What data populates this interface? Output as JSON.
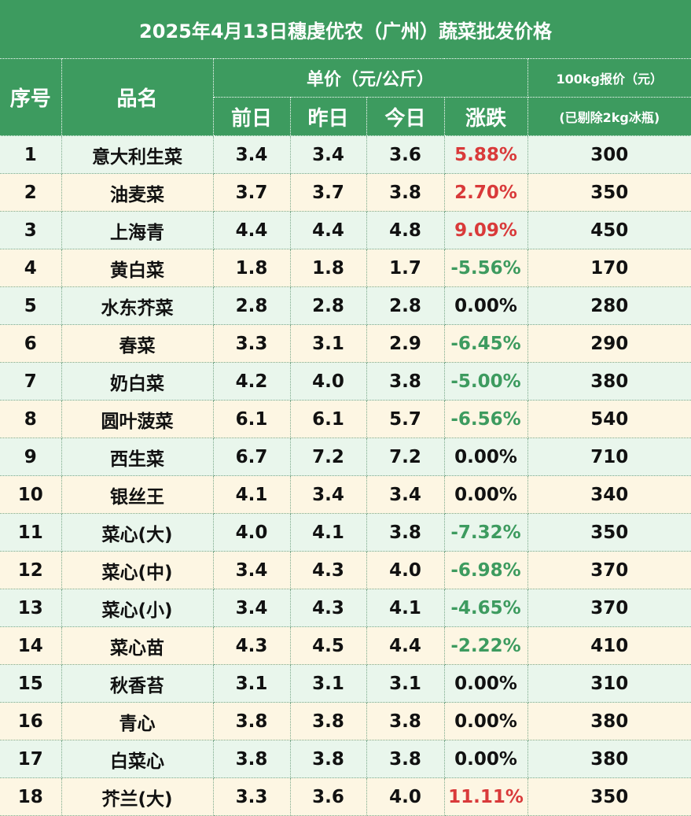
{
  "title": "2025年4月13日穗虔优农（广州）蔬菜批发价格",
  "headers": {
    "index": "序号",
    "name": "品名",
    "unit_price": "单价（元/公斤）",
    "prev_day": "前日",
    "yesterday": "昨日",
    "today": "今日",
    "change": "涨跌",
    "quote_100kg": "100kg报价（元）",
    "quote_note": "(已剔除2kg冰瓶)"
  },
  "colors": {
    "header_green": "#3d9b5f",
    "up": "#d93a3a",
    "down": "#3d9b5f"
  },
  "rows": [
    {
      "no": "1",
      "name": "意大利生菜",
      "prev": "3.4",
      "yest": "3.4",
      "today": "3.6",
      "change": "5.88%",
      "trend": "up",
      "quote": "300"
    },
    {
      "no": "2",
      "name": "油麦菜",
      "prev": "3.7",
      "yest": "3.7",
      "today": "3.8",
      "change": "2.70%",
      "trend": "up",
      "quote": "350"
    },
    {
      "no": "3",
      "name": "上海青",
      "prev": "4.4",
      "yest": "4.4",
      "today": "4.8",
      "change": "9.09%",
      "trend": "up",
      "quote": "450"
    },
    {
      "no": "4",
      "name": "黄白菜",
      "prev": "1.8",
      "yest": "1.8",
      "today": "1.7",
      "change": "-5.56%",
      "trend": "down",
      "quote": "170"
    },
    {
      "no": "5",
      "name": "水东芥菜",
      "prev": "2.8",
      "yest": "2.8",
      "today": "2.8",
      "change": "0.00%",
      "trend": "flat",
      "quote": "280"
    },
    {
      "no": "6",
      "name": "春菜",
      "prev": "3.3",
      "yest": "3.1",
      "today": "2.9",
      "change": "-6.45%",
      "trend": "down",
      "quote": "290"
    },
    {
      "no": "7",
      "name": "奶白菜",
      "prev": "4.2",
      "yest": "4.0",
      "today": "3.8",
      "change": "-5.00%",
      "trend": "down",
      "quote": "380"
    },
    {
      "no": "8",
      "name": "圆叶菠菜",
      "prev": "6.1",
      "yest": "6.1",
      "today": "5.7",
      "change": "-6.56%",
      "trend": "down",
      "quote": "540"
    },
    {
      "no": "9",
      "name": "西生菜",
      "prev": "6.7",
      "yest": "7.2",
      "today": "7.2",
      "change": "0.00%",
      "trend": "flat",
      "quote": "710"
    },
    {
      "no": "10",
      "name": "银丝王",
      "prev": "4.1",
      "yest": "3.4",
      "today": "3.4",
      "change": "0.00%",
      "trend": "flat",
      "quote": "340"
    },
    {
      "no": "11",
      "name": "菜心(大)",
      "prev": "4.0",
      "yest": "4.1",
      "today": "3.8",
      "change": "-7.32%",
      "trend": "down",
      "quote": "350"
    },
    {
      "no": "12",
      "name": "菜心(中)",
      "prev": "3.4",
      "yest": "4.3",
      "today": "4.0",
      "change": "-6.98%",
      "trend": "down",
      "quote": "370"
    },
    {
      "no": "13",
      "name": "菜心(小)",
      "prev": "3.4",
      "yest": "4.3",
      "today": "4.1",
      "change": "-4.65%",
      "trend": "down",
      "quote": "370"
    },
    {
      "no": "14",
      "name": "菜心苗",
      "prev": "4.3",
      "yest": "4.5",
      "today": "4.4",
      "change": "-2.22%",
      "trend": "down",
      "quote": "410"
    },
    {
      "no": "15",
      "name": "秋香苔",
      "prev": "3.1",
      "yest": "3.1",
      "today": "3.1",
      "change": "0.00%",
      "trend": "flat",
      "quote": "310"
    },
    {
      "no": "16",
      "name": "青心",
      "prev": "3.8",
      "yest": "3.8",
      "today": "3.8",
      "change": "0.00%",
      "trend": "flat",
      "quote": "380"
    },
    {
      "no": "17",
      "name": "白菜心",
      "prev": "3.8",
      "yest": "3.8",
      "today": "3.8",
      "change": "0.00%",
      "trend": "flat",
      "quote": "380"
    },
    {
      "no": "18",
      "name": "芥兰(大)",
      "prev": "3.3",
      "yest": "3.6",
      "today": "4.0",
      "change": "11.11%",
      "trend": "up",
      "quote": "350"
    }
  ]
}
